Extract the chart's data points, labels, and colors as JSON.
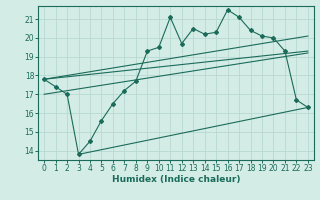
{
  "xlabel": "Humidex (Indice chaleur)",
  "bg_color": "#d4ece6",
  "grid_color": "#b8d8d2",
  "line_color": "#1a6b5a",
  "xlim": [
    -0.5,
    23.5
  ],
  "ylim": [
    13.5,
    21.7
  ],
  "xticks": [
    0,
    1,
    2,
    3,
    4,
    5,
    6,
    7,
    8,
    9,
    10,
    11,
    12,
    13,
    14,
    15,
    16,
    17,
    18,
    19,
    20,
    21,
    22,
    23
  ],
  "yticks": [
    14,
    15,
    16,
    17,
    18,
    19,
    20,
    21
  ],
  "main_x": [
    0,
    1,
    2,
    3,
    4,
    5,
    6,
    7,
    8,
    9,
    10,
    11,
    12,
    13,
    14,
    15,
    16,
    17,
    18,
    19,
    20,
    21,
    22,
    23
  ],
  "main_y": [
    17.8,
    17.4,
    17.0,
    13.8,
    14.5,
    15.6,
    16.5,
    17.2,
    17.7,
    19.3,
    19.5,
    21.1,
    19.7,
    20.5,
    20.2,
    20.3,
    21.5,
    21.1,
    20.4,
    20.1,
    20.0,
    19.3,
    16.7,
    16.3
  ],
  "line1_x": [
    0,
    23
  ],
  "line1_y": [
    17.8,
    20.1
  ],
  "line2_x": [
    0,
    23
  ],
  "line2_y": [
    17.8,
    19.3
  ],
  "line3_x": [
    0,
    23
  ],
  "line3_y": [
    17.0,
    19.2
  ],
  "line4_x": [
    3,
    23
  ],
  "line4_y": [
    13.8,
    16.3
  ]
}
